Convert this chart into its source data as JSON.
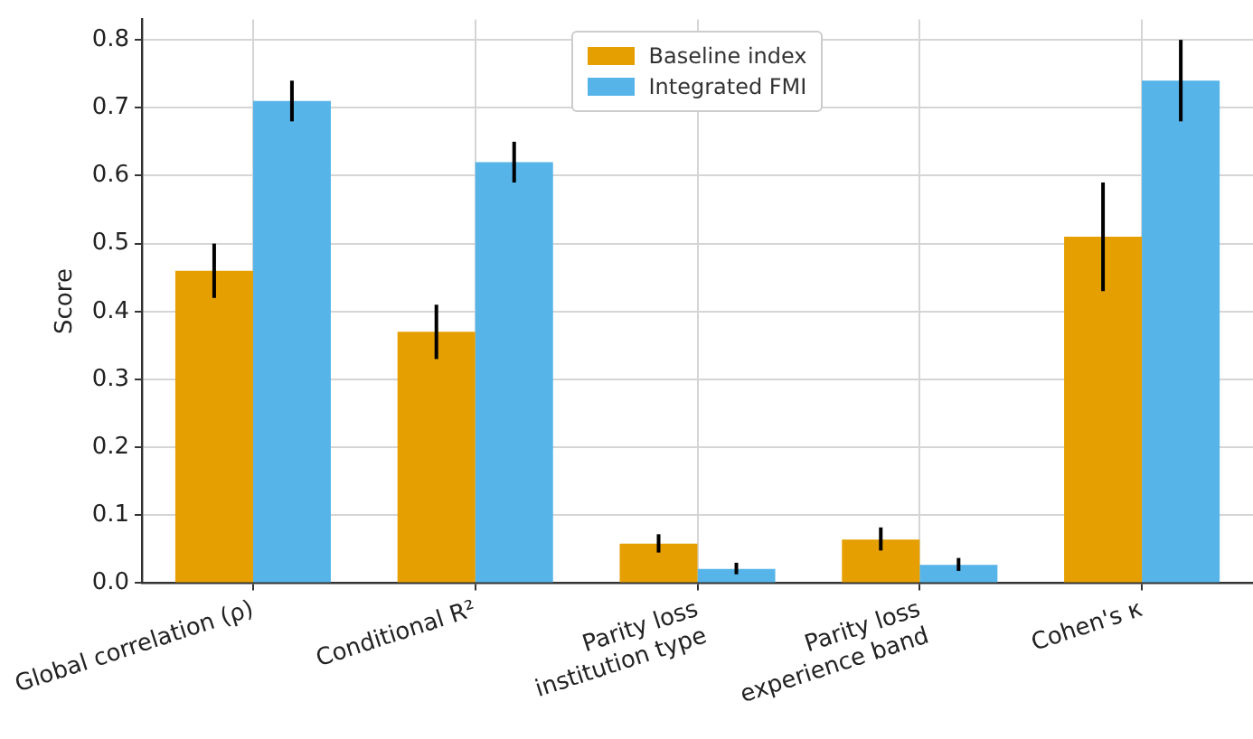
{
  "chart_data": {
    "type": "bar",
    "ylabel": "Score",
    "categories": [
      "Global correlation (ρ)",
      "Conditional R²",
      "Parity loss\ninstitution type",
      "Parity loss\nexperience band",
      "Cohen's κ"
    ],
    "series": [
      {
        "name": "Baseline index",
        "color": "#e69f00",
        "values": [
          0.46,
          0.37,
          0.058,
          0.064,
          0.51
        ],
        "errors": [
          [
            0.42,
            0.5
          ],
          [
            0.33,
            0.41
          ],
          [
            0.045,
            0.072
          ],
          [
            0.048,
            0.082
          ],
          [
            0.43,
            0.59
          ]
        ]
      },
      {
        "name": "Integrated FMI",
        "color": "#56b4e9",
        "values": [
          0.71,
          0.62,
          0.021,
          0.027,
          0.74
        ],
        "errors": [
          [
            0.68,
            0.74
          ],
          [
            0.59,
            0.65
          ],
          [
            0.013,
            0.03
          ],
          [
            0.018,
            0.037
          ],
          [
            0.68,
            0.8
          ]
        ]
      }
    ],
    "ylim": [
      0,
      0.83
    ],
    "yticks": [
      {
        "value": 0,
        "label": "0.0"
      },
      0.1,
      0.2,
      0.3,
      0.4,
      0.5,
      0.6,
      0.7,
      0.8
    ],
    "grid": true,
    "legend": "top"
  }
}
